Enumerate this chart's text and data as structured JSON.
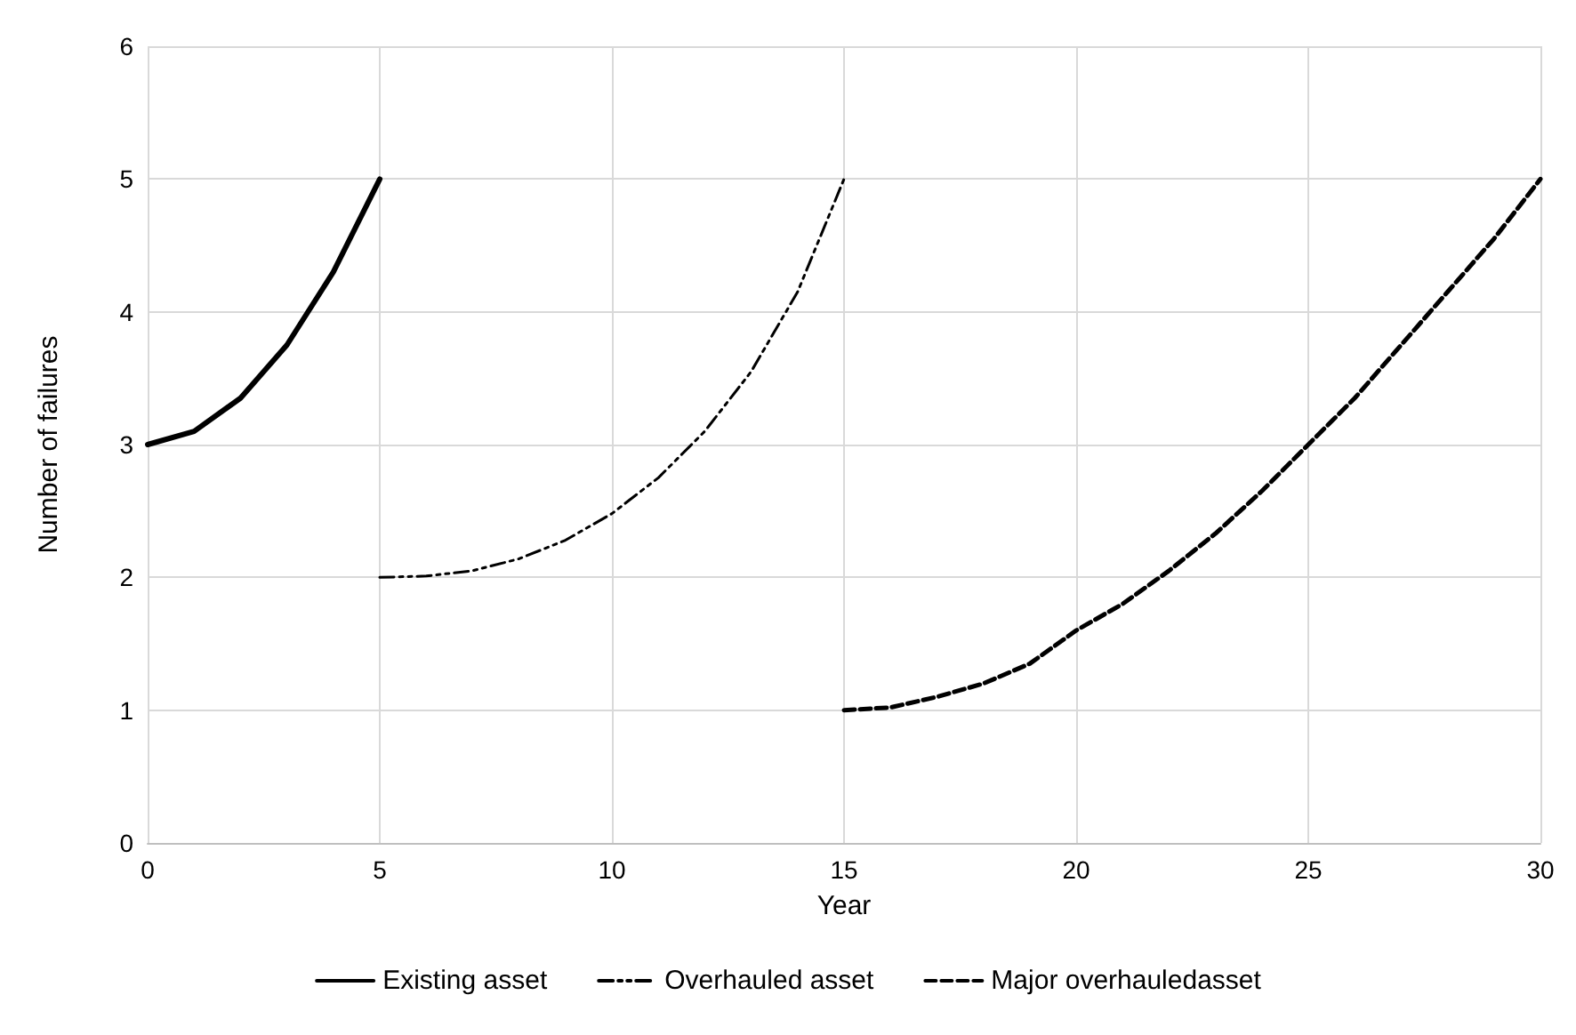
{
  "chart_data": {
    "type": "line",
    "xlabel": "Year",
    "ylabel": "Number of failures",
    "xlim": [
      0,
      30
    ],
    "ylim": [
      0,
      6
    ],
    "xticks": [
      0,
      5,
      10,
      15,
      20,
      25,
      30
    ],
    "yticks": [
      0,
      1,
      2,
      3,
      4,
      5,
      6
    ],
    "grid": true,
    "legend": "bottom",
    "marker": "none",
    "series": [
      {
        "name": "Existing asset",
        "color": "#000000",
        "line_style": "solid",
        "x": [
          0,
          1,
          2,
          3,
          4,
          5
        ],
        "values": [
          3,
          3.1,
          3.35,
          3.75,
          4.3,
          5
        ]
      },
      {
        "name": "Overhauled asset",
        "color": "#000000",
        "line_style": "dashdot",
        "x": [
          5,
          6,
          7,
          8,
          9,
          10,
          11,
          12,
          13,
          14,
          15
        ],
        "values": [
          2,
          2.01,
          2.05,
          2.14,
          2.28,
          2.48,
          2.75,
          3.1,
          3.55,
          4.15,
          5
        ]
      },
      {
        "name": "Major overhauledasset",
        "color": "#000000",
        "line_style": "dashed",
        "x": [
          15,
          16,
          17,
          18,
          19,
          20,
          21,
          22,
          23,
          24,
          25,
          26,
          27,
          28,
          29,
          30
        ],
        "values": [
          1,
          1.02,
          1.1,
          1.2,
          1.35,
          1.6,
          1.8,
          2.05,
          2.33,
          2.65,
          3,
          3.35,
          3.75,
          4.15,
          4.55,
          5
        ]
      }
    ]
  }
}
